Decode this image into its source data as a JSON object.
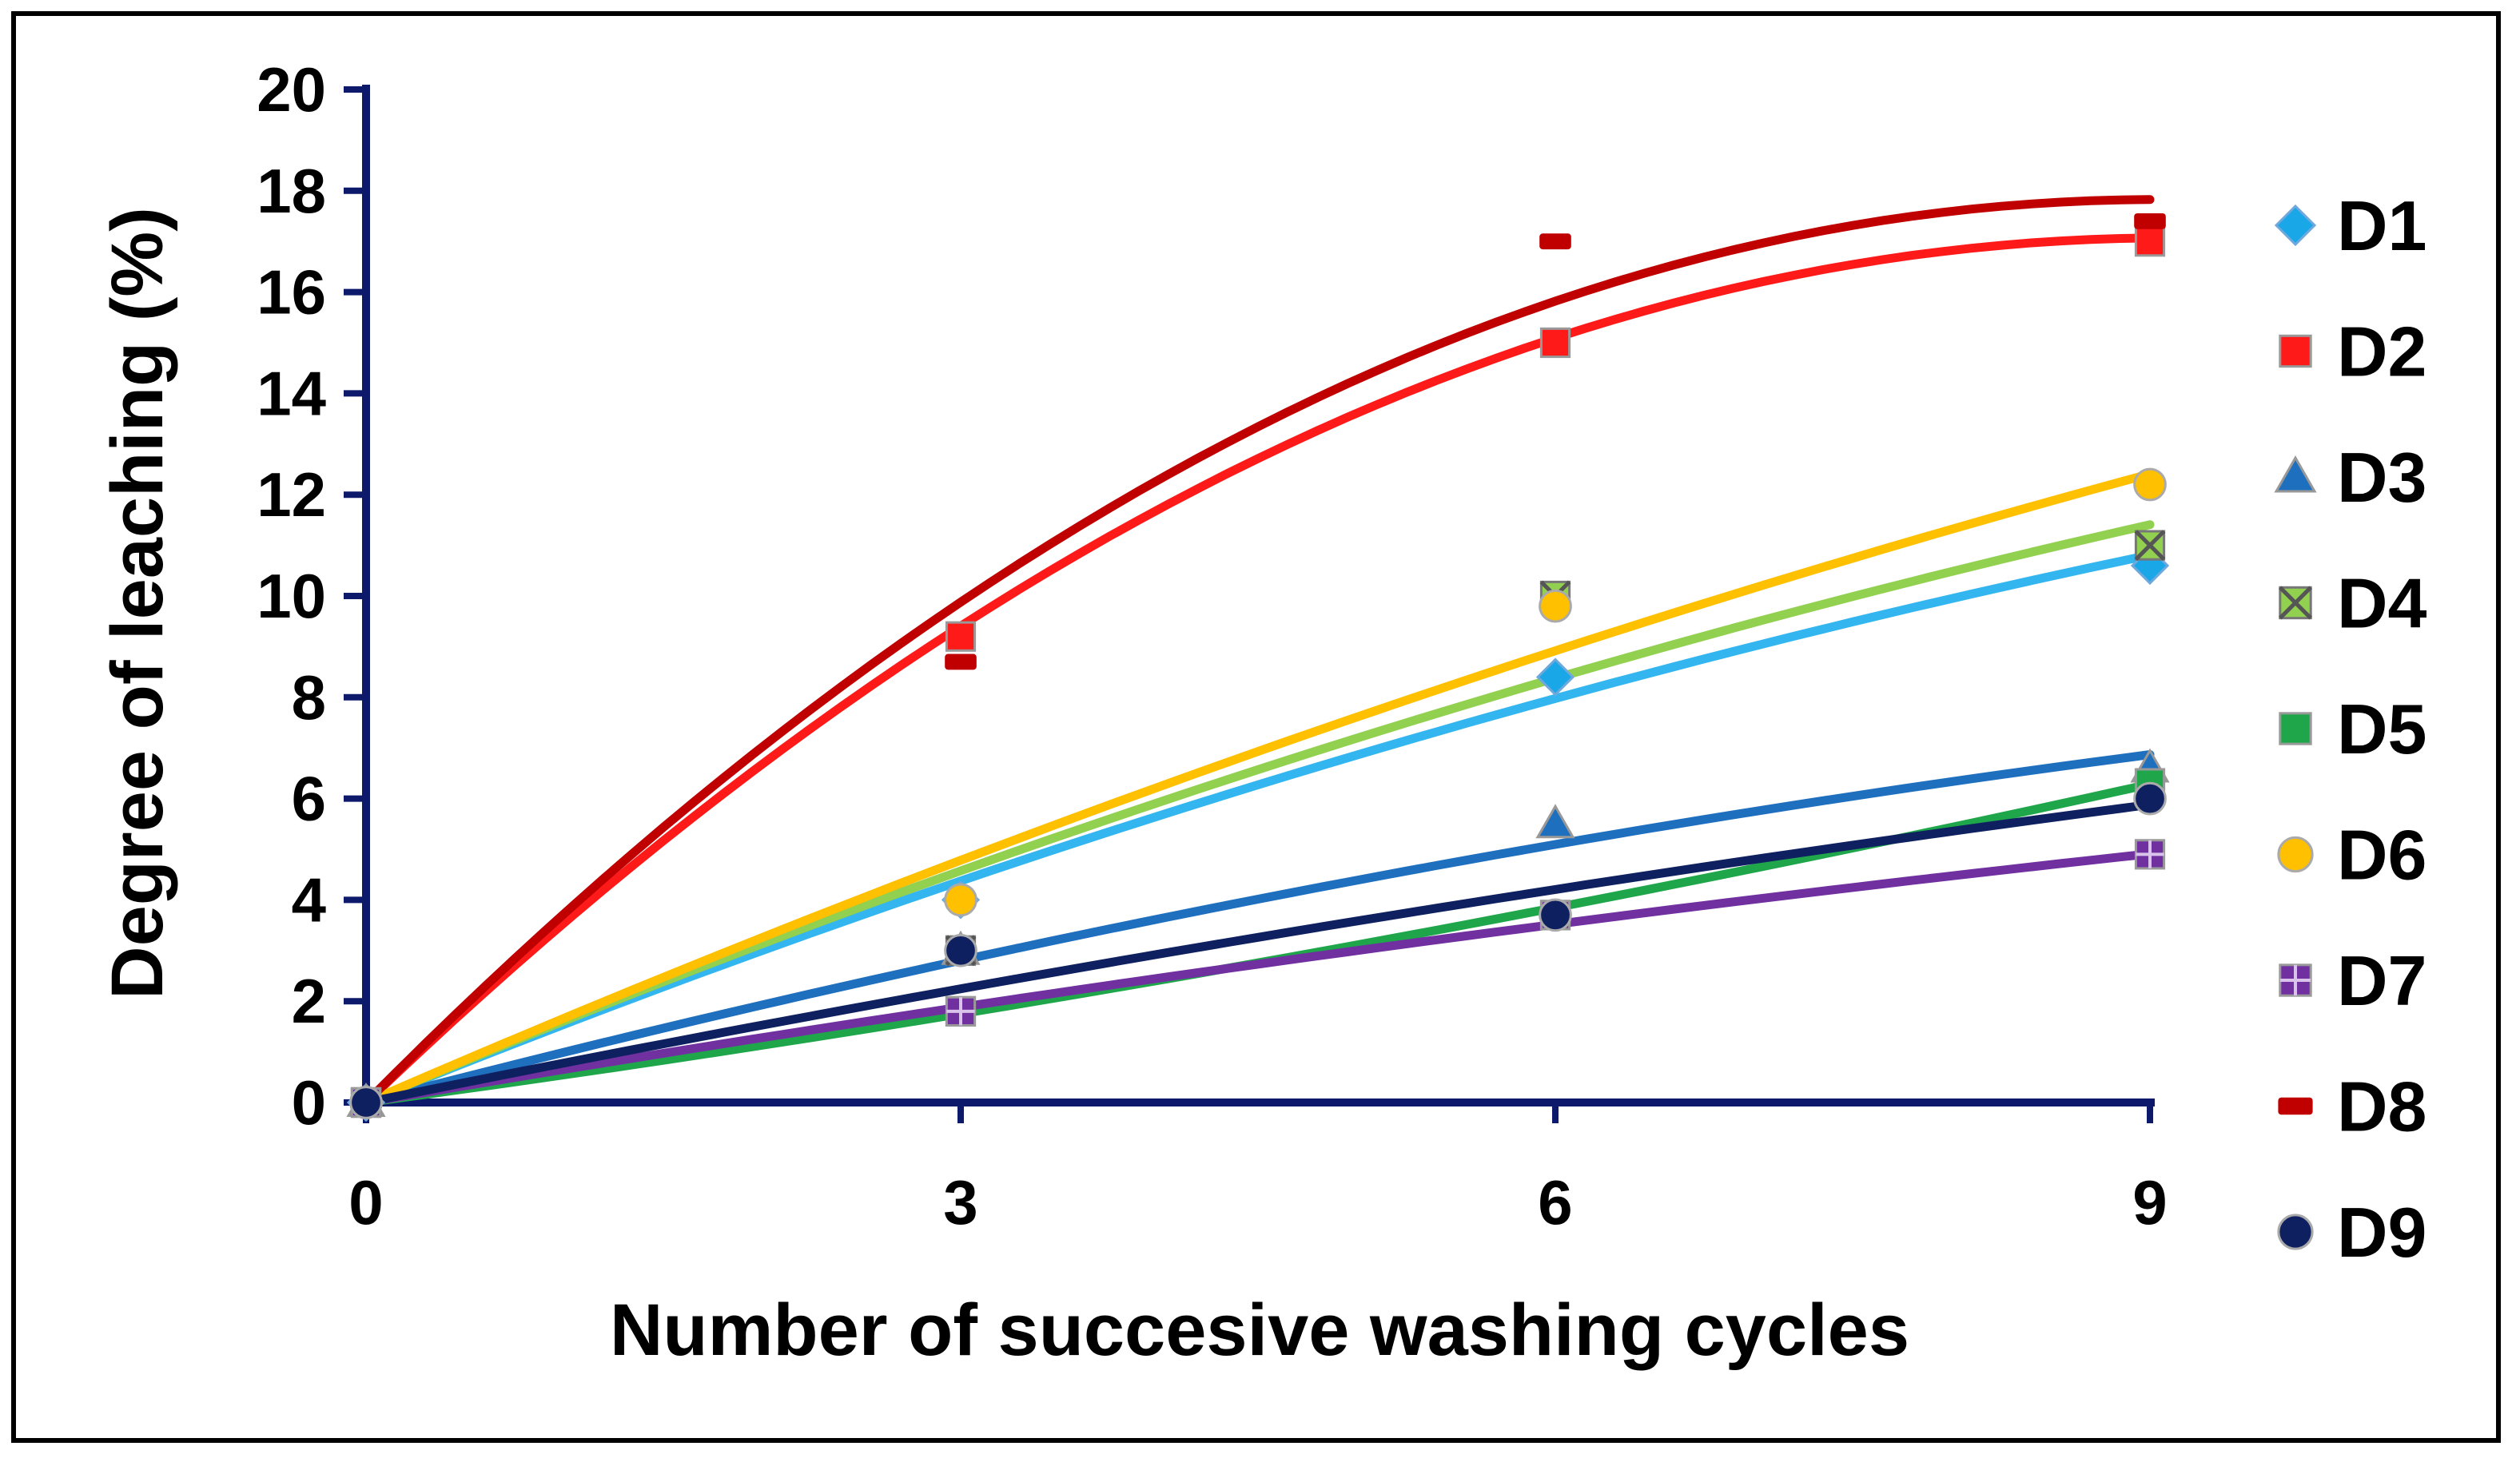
{
  "chart_data": {
    "type": "scatter",
    "title": "",
    "xlabel": "Number of succesive washing cycles",
    "ylabel": "Degree of leaching (%)",
    "x": [
      0,
      3,
      6,
      9
    ],
    "xlim": [
      0,
      9
    ],
    "ylim": [
      0,
      20
    ],
    "xticks": [
      "0",
      "3",
      "6",
      "9"
    ],
    "yticks": [
      "0",
      "2",
      "4",
      "6",
      "8",
      "10",
      "12",
      "14",
      "16",
      "18",
      "20"
    ],
    "legend_position": "right",
    "trendlines": "second-order polynomial",
    "series": [
      {
        "name": "D1",
        "marker": "diamond",
        "color": "#1aa7e8",
        "values": [
          0,
          4.0,
          8.4,
          10.6
        ]
      },
      {
        "name": "D2",
        "marker": "square",
        "color": "#ff1a1a",
        "values": [
          0,
          9.2,
          15.0,
          17.0
        ]
      },
      {
        "name": "D3",
        "marker": "triangle",
        "color": "#1f6fbf",
        "values": [
          0,
          3.0,
          5.5,
          6.6
        ]
      },
      {
        "name": "D4",
        "marker": "x-square",
        "color": "#92d050",
        "values": [
          0,
          3.0,
          10.0,
          11.0
        ]
      },
      {
        "name": "D5",
        "marker": "square",
        "color": "#1fa64a",
        "values": [
          0,
          1.8,
          3.7,
          6.3
        ]
      },
      {
        "name": "D6",
        "marker": "circle",
        "color": "#ffc000",
        "values": [
          0,
          4.0,
          9.8,
          12.2
        ]
      },
      {
        "name": "D7",
        "marker": "grid-square",
        "color": "#7030a0",
        "values": [
          0,
          1.8,
          3.7,
          4.9
        ]
      },
      {
        "name": "D8",
        "marker": "dash",
        "color": "#c00000",
        "values": [
          0,
          8.7,
          17.0,
          17.4
        ]
      },
      {
        "name": "D9",
        "marker": "circle",
        "color": "#0f2060",
        "values": [
          0,
          3.0,
          3.7,
          6.0
        ]
      }
    ],
    "fits": [
      {
        "name": "D1",
        "color": "#33b5f0",
        "values": [
          0,
          4.35,
          8.0,
          10.8
        ]
      },
      {
        "name": "D2",
        "color": "#ff1a1a",
        "values": [
          0,
          9.5,
          15.0,
          17.1
        ]
      },
      {
        "name": "D3",
        "color": "#1f6fbf",
        "values": [
          0,
          2.75,
          5.15,
          6.85
        ]
      },
      {
        "name": "D4",
        "color": "#92d050",
        "values": [
          0,
          4.55,
          8.4,
          11.4
        ]
      },
      {
        "name": "D5",
        "color": "#1fa64a",
        "values": [
          0,
          1.8,
          3.8,
          6.3
        ]
      },
      {
        "name": "D6",
        "color": "#ffc000",
        "values": [
          0,
          4.75,
          8.95,
          12.4
        ]
      },
      {
        "name": "D7",
        "color": "#7030a0",
        "values": [
          0,
          1.85,
          3.55,
          4.9
        ]
      },
      {
        "name": "D8",
        "color": "#c00000",
        "values": [
          0,
          9.8,
          15.9,
          17.8
        ]
      },
      {
        "name": "D9",
        "color": "#0f2060",
        "values": [
          0,
          2.3,
          4.15,
          5.9
        ]
      }
    ]
  }
}
